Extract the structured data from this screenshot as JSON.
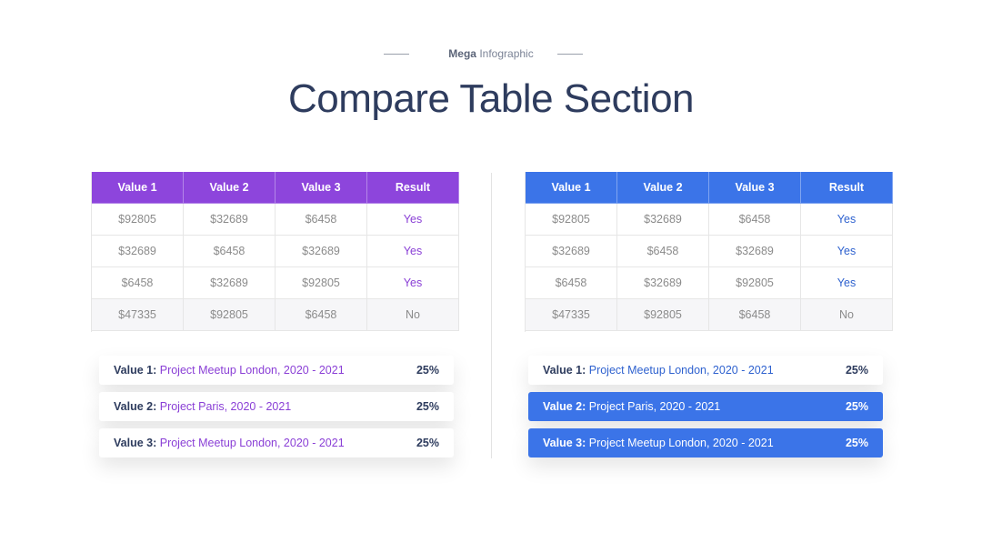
{
  "header": {
    "kicker_bold": "Mega",
    "kicker": "Infographic",
    "title": "Compare Table Section"
  },
  "tables": [
    {
      "columns": [
        "Value 1",
        "Value 2",
        "Value 3",
        "Result"
      ],
      "rows": [
        [
          "$92805",
          "$32689",
          "$6458",
          "Yes"
        ],
        [
          "$32689",
          "$6458",
          "$32689",
          "Yes"
        ],
        [
          "$6458",
          "$32689",
          "$92805",
          "Yes"
        ],
        [
          "$47335",
          "$92805",
          "$6458",
          "No"
        ]
      ]
    },
    {
      "columns": [
        "Value 1",
        "Value 2",
        "Value 3",
        "Result"
      ],
      "rows": [
        [
          "$92805",
          "$32689",
          "$6458",
          "Yes"
        ],
        [
          "$32689",
          "$6458",
          "$32689",
          "Yes"
        ],
        [
          "$6458",
          "$32689",
          "$92805",
          "Yes"
        ],
        [
          "$47335",
          "$92805",
          "$6458",
          "No"
        ]
      ]
    }
  ],
  "lists": [
    {
      "items": [
        {
          "label": "Value 1:",
          "text": "Project Meetup London, 2020 - 2021",
          "percent": "25%"
        },
        {
          "label": "Value 2:",
          "text": "Project Paris, 2020 - 2021",
          "percent": "25%"
        },
        {
          "label": "Value 3:",
          "text": "Project Meetup London, 2020 - 2021",
          "percent": "25%"
        }
      ]
    },
    {
      "items": [
        {
          "label": "Value 1:",
          "text": "Project Meetup London, 2020 - 2021",
          "percent": "25%"
        },
        {
          "label": "Value 2:",
          "text": "Project Paris, 2020 - 2021",
          "percent": "25%"
        },
        {
          "label": "Value 3:",
          "text": "Project Meetup London, 2020 - 2021",
          "percent": "25%"
        }
      ]
    }
  ]
}
